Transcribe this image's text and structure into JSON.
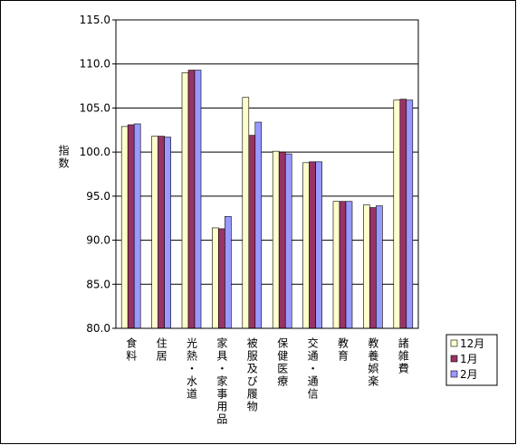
{
  "chart_data": {
    "type": "bar",
    "y_label": "指数",
    "categories": [
      "食料",
      "住居",
      "光熱・水道",
      "家具・家事用品",
      "被服及び履物",
      "保健医療",
      "交通・通信",
      "教育",
      "教養娯楽",
      "諸雑費"
    ],
    "series": [
      {
        "name": "12月",
        "color": "#ffffcc",
        "values": [
          102.9,
          101.8,
          109.0,
          91.4,
          106.2,
          100.1,
          98.8,
          94.4,
          94.0,
          105.9
        ]
      },
      {
        "name": "1月",
        "color": "#993366",
        "values": [
          103.1,
          101.8,
          109.3,
          91.3,
          101.9,
          100.0,
          98.9,
          94.4,
          93.7,
          106.0
        ]
      },
      {
        "name": "2月",
        "color": "#9999ff",
        "values": [
          103.2,
          101.7,
          109.3,
          92.7,
          103.4,
          99.8,
          98.9,
          94.4,
          93.9,
          105.9
        ]
      }
    ],
    "ylim": [
      80,
      115
    ],
    "yticks": [
      {
        "value": 80,
        "label": "80.0"
      },
      {
        "value": 85,
        "label": "85.0"
      },
      {
        "value": 90,
        "label": "90.0"
      },
      {
        "value": 95,
        "label": "95.0"
      },
      {
        "value": 100,
        "label": "100.0"
      },
      {
        "value": 105,
        "label": "105.0"
      },
      {
        "value": 110,
        "label": "110.0"
      },
      {
        "value": 115,
        "label": "115.0"
      }
    ],
    "grid": true
  }
}
